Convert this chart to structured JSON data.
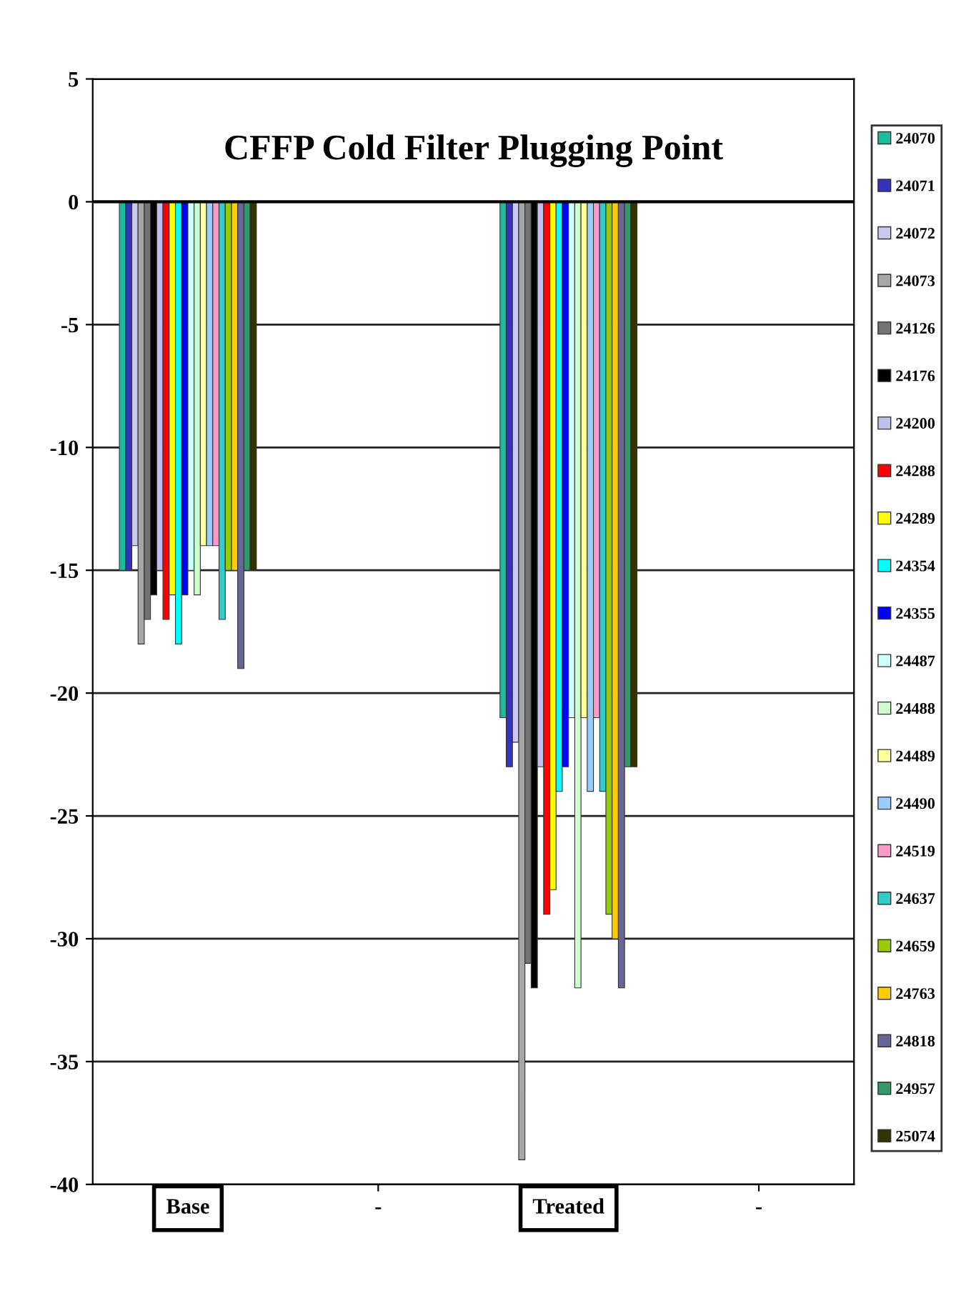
{
  "chart_data": {
    "type": "bar",
    "title": "CFFP Cold Filter Plugging Point",
    "categories": [
      "Base",
      "-",
      "Treated",
      "-"
    ],
    "ylim": [
      -40,
      5
    ],
    "yticks": [
      -40,
      -35,
      -30,
      -25,
      -20,
      -15,
      -10,
      -5,
      0,
      5
    ],
    "grid": "y",
    "legend": "right",
    "series": [
      {
        "name": "24070",
        "color": "#1abc9c",
        "values": [
          -15,
          null,
          -21,
          null
        ]
      },
      {
        "name": "24071",
        "color": "#3333bb",
        "values": [
          -15,
          null,
          -23,
          null
        ]
      },
      {
        "name": "24072",
        "color": "#c8c8f0",
        "values": [
          -14,
          null,
          -22,
          null
        ]
      },
      {
        "name": "24073",
        "color": "#a6a6a6",
        "values": [
          -18,
          null,
          -39,
          null
        ]
      },
      {
        "name": "24126",
        "color": "#737373",
        "values": [
          -17,
          null,
          -31,
          null
        ]
      },
      {
        "name": "24176",
        "color": "#000000",
        "values": [
          -16,
          null,
          -32,
          null
        ]
      },
      {
        "name": "24200",
        "color": "#c0c0f0",
        "values": [
          -15,
          null,
          -23,
          null
        ]
      },
      {
        "name": "24288",
        "color": "#ff0000",
        "values": [
          -17,
          null,
          -29,
          null
        ]
      },
      {
        "name": "24289",
        "color": "#ffff00",
        "values": [
          -16,
          null,
          -28,
          null
        ]
      },
      {
        "name": "24354",
        "color": "#00ffff",
        "values": [
          -18,
          null,
          -24,
          null
        ]
      },
      {
        "name": "24355",
        "color": "#0000ff",
        "values": [
          -16,
          null,
          -23,
          null
        ]
      },
      {
        "name": "24487",
        "color": "#ccffff",
        "values": [
          -15,
          null,
          -21,
          null
        ]
      },
      {
        "name": "24488",
        "color": "#ccffcc",
        "values": [
          -16,
          null,
          -32,
          null
        ]
      },
      {
        "name": "24489",
        "color": "#ffff99",
        "values": [
          -14,
          null,
          -21,
          null
        ]
      },
      {
        "name": "24490",
        "color": "#99ccff",
        "values": [
          -14,
          null,
          -24,
          null
        ]
      },
      {
        "name": "24519",
        "color": "#ff99cc",
        "values": [
          -14,
          null,
          -21,
          null
        ]
      },
      {
        "name": "24637",
        "color": "#33cccc",
        "values": [
          -17,
          null,
          -24,
          null
        ]
      },
      {
        "name": "24659",
        "color": "#99cc00",
        "values": [
          -15,
          null,
          -29,
          null
        ]
      },
      {
        "name": "24763",
        "color": "#ffcc00",
        "values": [
          -15,
          null,
          -30,
          null
        ]
      },
      {
        "name": "24818",
        "color": "#666699",
        "values": [
          -19,
          null,
          -32,
          null
        ]
      },
      {
        "name": "24957",
        "color": "#339966",
        "values": [
          -15,
          null,
          -23,
          null
        ]
      },
      {
        "name": "25074",
        "color": "#333300",
        "values": [
          -15,
          null,
          -23,
          null
        ]
      }
    ]
  }
}
